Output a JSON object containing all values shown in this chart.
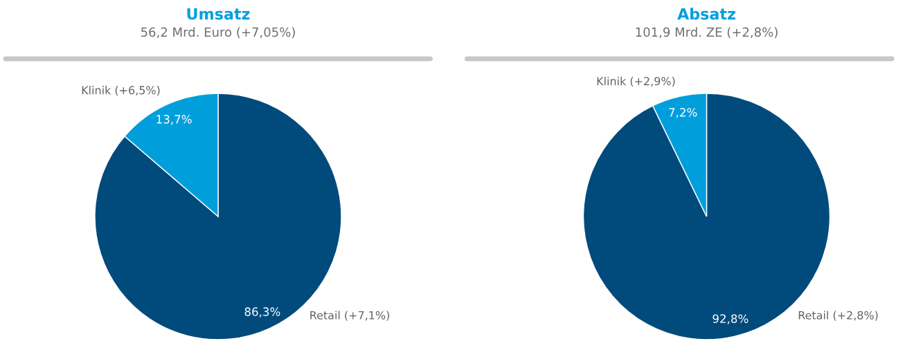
{
  "chart_data": [
    {
      "type": "pie",
      "title": "Umsatz",
      "subtitle": "56,2 Mrd. Euro (+7,05%)",
      "categories": [
        "Retail (+7,1%)",
        "Klinik (+6,5%)"
      ],
      "values": [
        86.3,
        13.7
      ],
      "colors": [
        "#004b7c",
        "#009fdc"
      ],
      "value_labels": [
        "86,3%",
        "13,7%"
      ]
    },
    {
      "type": "pie",
      "title": "Absatz",
      "subtitle": "101,9 Mrd. ZE (+2,8%)",
      "categories": [
        "Retail (+2,8%)",
        "Klinik (+2,9%)"
      ],
      "values": [
        92.8,
        7.2
      ],
      "colors": [
        "#004b7c",
        "#009fdc"
      ],
      "value_labels": [
        "92,8%",
        "7,2%"
      ]
    }
  ]
}
